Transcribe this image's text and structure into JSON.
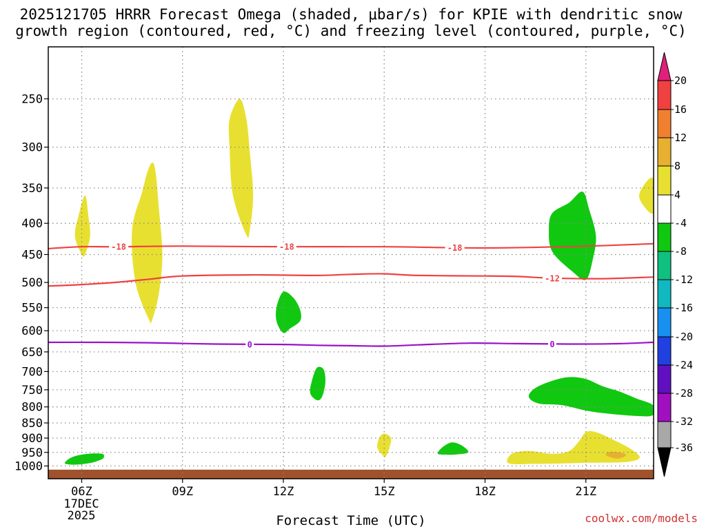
{
  "chart_data": {
    "type": "contour",
    "title_lines": [
      "2025121705 HRRR Forecast Omega (shaded, μbar/s) for KPIE with dendritic snow",
      "growth region (contoured, red, °C) and freezing level (contoured, purple, °C)"
    ],
    "xlabel": "Forecast Time (UTC)",
    "x_ticks": [
      "06Z",
      "09Z",
      "12Z",
      "15Z",
      "18Z",
      "21Z"
    ],
    "x_tick_hours": [
      6,
      9,
      12,
      15,
      18,
      21
    ],
    "x_date_label": [
      "17DEC",
      "2025"
    ],
    "xlim": [
      5.0,
      23.0
    ],
    "y_ticks": [
      250,
      300,
      350,
      400,
      450,
      500,
      550,
      600,
      650,
      700,
      750,
      800,
      850,
      900,
      950,
      1000
    ],
    "y_tick_labels": [
      "250",
      "300",
      "350",
      "400",
      "450",
      "500",
      "550",
      "600",
      "650",
      "700",
      "750",
      "800",
      "850",
      "900",
      "950",
      "1000"
    ],
    "ylim_hPa": [
      1025,
      210
    ],
    "colorbar": {
      "labels": [
        "20",
        "16",
        "12",
        "8",
        "4",
        "-4",
        "-8",
        "-12",
        "-16",
        "-20",
        "-24",
        "-28",
        "-32",
        "-36"
      ],
      "bins": [
        {
          "range": [
            20,
            99
          ],
          "color": "#e0207a"
        },
        {
          "range": [
            16,
            20
          ],
          "color": "#f04040"
        },
        {
          "range": [
            12,
            16
          ],
          "color": "#f08030"
        },
        {
          "range": [
            8,
            12
          ],
          "color": "#e8b030"
        },
        {
          "range": [
            4,
            8
          ],
          "color": "#e8e030"
        },
        {
          "range": [
            -4,
            4
          ],
          "color": "#ffffff"
        },
        {
          "range": [
            -8,
            -4
          ],
          "color": "#10c810"
        },
        {
          "range": [
            -12,
            -8
          ],
          "color": "#10c080"
        },
        {
          "range": [
            -16,
            -12
          ],
          "color": "#10b8c0"
        },
        {
          "range": [
            -20,
            -16
          ],
          "color": "#1890f0"
        },
        {
          "range": [
            -24,
            -20
          ],
          "color": "#2040e0"
        },
        {
          "range": [
            -28,
            -24
          ],
          "color": "#6010c0"
        },
        {
          "range": [
            -32,
            -28
          ],
          "color": "#a010c0"
        },
        {
          "range": [
            -36,
            -32
          ],
          "color": "#a8a8a8"
        },
        {
          "range": [
            -99,
            -36
          ],
          "color": "#000000"
        }
      ]
    },
    "contours": [
      {
        "name": "dgz-minus18",
        "label": "-18",
        "color": "#f04040",
        "points": [
          [
            5.0,
            440
          ],
          [
            6.0,
            437
          ],
          [
            7.0,
            437
          ],
          [
            9.0,
            436
          ],
          [
            12.0,
            437
          ],
          [
            15.0,
            437
          ],
          [
            18.0,
            439
          ],
          [
            21.0,
            436
          ],
          [
            23.0,
            432
          ]
        ],
        "label_hours": [
          7.1,
          12.1,
          17.1
        ]
      },
      {
        "name": "dgz-minus12",
        "label": "-12",
        "color": "#f04040",
        "points": [
          [
            5.0,
            507
          ],
          [
            6.0,
            504
          ],
          [
            7.0,
            500
          ],
          [
            8.0,
            494
          ],
          [
            9.0,
            488
          ],
          [
            11.0,
            486
          ],
          [
            13.0,
            487
          ],
          [
            14.0,
            485
          ],
          [
            15.0,
            484
          ],
          [
            16.0,
            487
          ],
          [
            18.0,
            488
          ],
          [
            19.0,
            489
          ],
          [
            20.0,
            492
          ],
          [
            21.5,
            493
          ],
          [
            23.0,
            490
          ]
        ],
        "label_hours": [
          20.0
        ]
      },
      {
        "name": "freezing-level",
        "label": "0",
        "color": "#9a10c8",
        "points": [
          [
            5.0,
            627
          ],
          [
            6.5,
            627
          ],
          [
            8.0,
            628
          ],
          [
            10.0,
            631
          ],
          [
            12.0,
            632
          ],
          [
            13.0,
            634
          ],
          [
            14.0,
            635
          ],
          [
            15.0,
            636
          ],
          [
            16.0,
            633
          ],
          [
            17.5,
            629
          ],
          [
            19.0,
            630
          ],
          [
            20.5,
            631
          ],
          [
            22.0,
            630
          ],
          [
            23.0,
            627
          ]
        ],
        "label_hours": [
          11.0,
          20.0
        ]
      }
    ],
    "omega_regions": [
      {
        "name": "rising-0630z-400",
        "value": "4 to 8",
        "color": "#e8e030",
        "points": [
          [
            6.0,
            450
          ],
          [
            5.8,
            420
          ],
          [
            5.9,
            390
          ],
          [
            6.1,
            360
          ],
          [
            6.2,
            390
          ],
          [
            6.25,
            420
          ],
          [
            6.1,
            450
          ]
        ]
      },
      {
        "name": "rising-0800z-450",
        "value": "4 to 8",
        "color": "#e8e030",
        "points": [
          [
            8.0,
            575
          ],
          [
            7.6,
            500
          ],
          [
            7.5,
            410
          ],
          [
            7.8,
            355
          ],
          [
            7.95,
            330
          ],
          [
            8.1,
            318
          ],
          [
            8.2,
            330
          ],
          [
            8.3,
            380
          ],
          [
            8.4,
            450
          ],
          [
            8.3,
            520
          ],
          [
            8.1,
            575
          ]
        ]
      },
      {
        "name": "rising-1100z-320",
        "value": "4 to 8",
        "color": "#e8e030",
        "points": [
          [
            10.9,
            418
          ],
          [
            10.5,
            360
          ],
          [
            10.4,
            300
          ],
          [
            10.4,
            270
          ],
          [
            10.7,
            250
          ],
          [
            10.9,
            270
          ],
          [
            11.0,
            305
          ],
          [
            11.1,
            360
          ],
          [
            11.0,
            410
          ]
        ]
      },
      {
        "name": "rising-2300z-360",
        "value": "4 to 8",
        "color": "#e8e030",
        "points": [
          [
            23.0,
            385
          ],
          [
            22.6,
            365
          ],
          [
            22.7,
            348
          ],
          [
            23.0,
            338
          ]
        ]
      },
      {
        "name": "rising-1500z-925",
        "value": "4 to 8",
        "color": "#e8e030",
        "points": [
          [
            15.0,
            965
          ],
          [
            14.8,
            935
          ],
          [
            14.85,
            900
          ],
          [
            15.0,
            885
          ],
          [
            15.2,
            900
          ],
          [
            15.15,
            935
          ],
          [
            15.05,
            965
          ]
        ]
      },
      {
        "name": "rising-2100z-960",
        "value": "4 to 8",
        "color": "#e8e030",
        "points": [
          [
            18.7,
            990
          ],
          [
            18.8,
            955
          ],
          [
            19.3,
            945
          ],
          [
            20.0,
            955
          ],
          [
            20.5,
            945
          ],
          [
            20.8,
            910
          ],
          [
            21.0,
            880
          ],
          [
            21.3,
            880
          ],
          [
            21.8,
            905
          ],
          [
            22.3,
            935
          ],
          [
            22.6,
            968
          ],
          [
            22.2,
            985
          ],
          [
            21.0,
            988
          ],
          [
            20.5,
            990
          ],
          [
            19.5,
            992
          ]
        ]
      },
      {
        "name": "rising-2200z-960-core",
        "value": "8 to 12",
        "color": "#e8b030",
        "points": [
          [
            21.6,
            960
          ],
          [
            21.7,
            948
          ],
          [
            22.0,
            950
          ],
          [
            22.2,
            960
          ],
          [
            22.0,
            972
          ],
          [
            21.8,
            970
          ]
        ]
      },
      {
        "name": "sinking-0630z-975",
        "value": "-4 to -8",
        "color": "#10c810",
        "points": [
          [
            5.5,
            990
          ],
          [
            5.7,
            968
          ],
          [
            6.1,
            956
          ],
          [
            6.6,
            955
          ],
          [
            6.65,
            970
          ],
          [
            6.5,
            980
          ],
          [
            6.2,
            990
          ],
          [
            5.8,
            995
          ]
        ]
      },
      {
        "name": "sinking-1200z-570",
        "value": "-4 to -8",
        "color": "#10c810",
        "points": [
          [
            11.8,
            580
          ],
          [
            11.8,
            548
          ],
          [
            12.0,
            518
          ],
          [
            12.3,
            530
          ],
          [
            12.5,
            555
          ],
          [
            12.5,
            578
          ],
          [
            12.2,
            595
          ],
          [
            12.0,
            605
          ]
        ]
      },
      {
        "name": "sinking-1300z-735",
        "value": "-4 to -8",
        "color": "#10c810",
        "points": [
          [
            12.8,
            760
          ],
          [
            12.85,
            725
          ],
          [
            13.0,
            690
          ],
          [
            13.2,
            695
          ],
          [
            13.25,
            730
          ],
          [
            13.15,
            770
          ],
          [
            13.0,
            780
          ]
        ]
      },
      {
        "name": "sinking-1700z-935",
        "value": "-4 to -8",
        "color": "#10c810",
        "points": [
          [
            16.6,
            955
          ],
          [
            16.7,
            935
          ],
          [
            17.0,
            915
          ],
          [
            17.3,
            925
          ],
          [
            17.5,
            950
          ],
          [
            17.1,
            958
          ],
          [
            16.8,
            958
          ]
        ]
      },
      {
        "name": "sinking-2030z-420",
        "value": "-4 to -8",
        "color": "#10c810",
        "points": [
          [
            20.0,
            445
          ],
          [
            19.9,
            410
          ],
          [
            20.0,
            385
          ],
          [
            20.5,
            370
          ],
          [
            20.9,
            355
          ],
          [
            21.1,
            380
          ],
          [
            21.3,
            420
          ],
          [
            21.2,
            460
          ],
          [
            21.0,
            495
          ],
          [
            20.6,
            480
          ]
        ]
      },
      {
        "name": "sinking-2200z-780",
        "value": "-4 to -8",
        "color": "#10c810",
        "points": [
          [
            19.3,
            770
          ],
          [
            19.5,
            745
          ],
          [
            20.0,
            725
          ],
          [
            20.5,
            715
          ],
          [
            21.0,
            720
          ],
          [
            21.5,
            740
          ],
          [
            22.0,
            755
          ],
          [
            22.5,
            775
          ],
          [
            23.0,
            795
          ],
          [
            23.0,
            825
          ],
          [
            22.5,
            828
          ],
          [
            21.2,
            815
          ],
          [
            20.3,
            795
          ],
          [
            19.6,
            790
          ]
        ]
      }
    ],
    "terrain": {
      "color": "#a0522d",
      "top_hPa": 1014
    }
  },
  "credit": "coolwx.com/models"
}
